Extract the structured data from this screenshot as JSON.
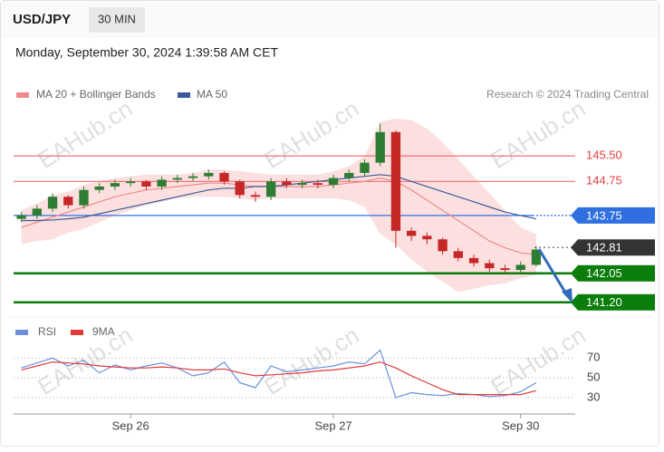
{
  "header": {
    "symbol": "USD/JPY",
    "timeframe": "30 MIN",
    "timestamp": "Monday, September 30, 2024 1:39:58 AM CET"
  },
  "watermark": "EAHub.cn",
  "chart_data": [
    {
      "type": "candlestick",
      "source": "Research © 2024 Trading Central",
      "categories": [
        null,
        null,
        null,
        null,
        null,
        null,
        null,
        "Sep 26",
        null,
        null,
        null,
        null,
        null,
        null,
        null,
        null,
        null,
        null,
        null,
        null,
        "Sep 27",
        null,
        null,
        null,
        null,
        null,
        null,
        null,
        null,
        null,
        null,
        null,
        "Sep 30",
        null,
        null,
        null
      ],
      "open": [
        143.65,
        143.75,
        143.95,
        144.3,
        144.05,
        144.5,
        144.6,
        144.7,
        144.75,
        144.6,
        144.8,
        144.85,
        144.9,
        145.0,
        144.75,
        144.35,
        144.3,
        144.75,
        144.65,
        144.7,
        144.65,
        144.85,
        145.0,
        145.3,
        146.2,
        143.3,
        143.15,
        143.05,
        142.7,
        142.5,
        142.35,
        142.2,
        142.15,
        142.3,
        null,
        null
      ],
      "high": [
        143.85,
        144.05,
        144.4,
        144.35,
        144.6,
        144.7,
        144.8,
        144.85,
        144.8,
        144.9,
        144.95,
        145.0,
        145.1,
        145.05,
        144.8,
        144.45,
        144.85,
        144.85,
        144.8,
        144.8,
        144.95,
        145.1,
        145.4,
        146.45,
        146.25,
        143.4,
        143.25,
        143.1,
        142.8,
        142.6,
        142.45,
        142.3,
        142.4,
        142.85,
        null,
        null
      ],
      "low": [
        143.55,
        143.65,
        143.85,
        143.95,
        143.95,
        144.4,
        144.5,
        144.6,
        144.5,
        144.5,
        144.7,
        144.75,
        144.8,
        144.65,
        144.25,
        144.15,
        144.2,
        144.55,
        144.55,
        144.55,
        144.55,
        144.75,
        144.9,
        145.2,
        142.8,
        143.0,
        142.9,
        142.6,
        142.4,
        142.25,
        142.1,
        142.05,
        142.05,
        142.25,
        null,
        null
      ],
      "close": [
        143.75,
        143.95,
        144.3,
        144.05,
        144.5,
        144.6,
        144.7,
        144.75,
        144.6,
        144.8,
        144.85,
        144.9,
        145.0,
        144.75,
        144.35,
        144.3,
        144.75,
        144.65,
        144.7,
        144.65,
        144.85,
        145.0,
        145.3,
        146.2,
        143.3,
        143.15,
        143.05,
        142.7,
        142.5,
        142.35,
        142.2,
        142.15,
        142.3,
        142.75,
        null,
        null
      ],
      "up_color": "#2e7d32",
      "down_color": "#c62828",
      "series": [
        {
          "name": "MA 20 + Bollinger Bands",
          "color": "#f08a8a",
          "values": [
            143.4,
            143.55,
            143.7,
            143.85,
            144.0,
            144.15,
            144.3,
            144.4,
            144.5,
            144.55,
            144.6,
            144.65,
            144.7,
            144.7,
            144.65,
            144.6,
            144.6,
            144.6,
            144.6,
            144.6,
            144.65,
            144.7,
            144.75,
            144.85,
            144.75,
            144.5,
            144.2,
            143.9,
            143.6,
            143.3,
            143.0,
            142.8,
            142.65,
            142.6,
            null,
            null
          ]
        },
        {
          "name": "MA 50",
          "color": "#3d5a99",
          "values": [
            143.6,
            143.6,
            143.62,
            143.65,
            143.7,
            143.8,
            143.9,
            144.0,
            144.1,
            144.2,
            144.3,
            144.4,
            144.5,
            144.55,
            144.55,
            144.6,
            144.6,
            144.65,
            144.7,
            144.75,
            144.8,
            144.85,
            144.9,
            144.95,
            144.9,
            144.75,
            144.6,
            144.45,
            144.3,
            144.15,
            144.0,
            143.85,
            143.75,
            143.65,
            null,
            null
          ]
        }
      ],
      "bands": {
        "color": "#fcdada",
        "upper": [
          143.9,
          144.1,
          144.35,
          144.45,
          144.65,
          144.75,
          144.85,
          144.9,
          144.95,
          144.95,
          144.95,
          145.0,
          145.1,
          145.1,
          145.05,
          145.0,
          144.95,
          144.95,
          144.95,
          144.95,
          145.05,
          145.2,
          145.5,
          146.5,
          146.6,
          146.55,
          146.3,
          145.9,
          145.4,
          144.9,
          144.4,
          143.9,
          143.4,
          143.2,
          null,
          null
        ],
        "lower": [
          142.9,
          143.0,
          143.05,
          143.25,
          143.35,
          143.55,
          143.75,
          143.9,
          144.05,
          144.15,
          144.25,
          144.3,
          144.3,
          144.3,
          144.25,
          144.2,
          144.25,
          144.25,
          144.25,
          144.25,
          144.25,
          144.2,
          144.0,
          143.2,
          142.9,
          142.45,
          142.1,
          141.8,
          141.5,
          141.6,
          141.7,
          141.75,
          141.9,
          142.0,
          null,
          null
        ]
      },
      "levels": [
        {
          "value": 145.5,
          "label": "145.50",
          "color": "#f07070",
          "style": "text"
        },
        {
          "value": 144.75,
          "label": "144.75",
          "color": "#f07070",
          "style": "text"
        },
        {
          "value": 143.75,
          "label": "143.75",
          "color": "#2f6fe0",
          "style": "box"
        },
        {
          "value": 142.81,
          "label": "142.81",
          "color": "#333333",
          "style": "dotted-box"
        },
        {
          "value": 142.05,
          "label": "142.05",
          "color": "#0a7d0a",
          "style": "thick-box"
        },
        {
          "value": 141.2,
          "label": "141.20",
          "color": "#0a7d0a",
          "style": "thick-box"
        }
      ],
      "ylim": [
        140.9,
        146.7
      ]
    },
    {
      "type": "line",
      "series": [
        {
          "name": "RSI",
          "color": "#6a8fe0",
          "values": [
            60,
            65,
            70,
            62,
            68,
            55,
            63,
            58,
            62,
            65,
            60,
            52,
            55,
            66,
            45,
            40,
            62,
            56,
            58,
            60,
            62,
            66,
            64,
            78,
            30,
            35,
            33,
            32,
            34,
            33,
            31,
            32,
            36,
            45,
            null,
            null
          ]
        },
        {
          "name": "9MA",
          "color": "#e03a3a",
          "values": [
            58,
            62,
            66,
            65,
            64,
            62,
            61,
            60,
            60,
            61,
            60,
            58,
            58,
            59,
            55,
            52,
            53,
            54,
            55,
            57,
            58,
            60,
            62,
            66,
            60,
            52,
            45,
            38,
            33,
            33,
            33,
            33,
            33,
            37,
            null,
            null
          ]
        }
      ],
      "ylim": [
        18,
        84
      ],
      "yticks": [
        70,
        50,
        30
      ],
      "grid": true
    }
  ]
}
